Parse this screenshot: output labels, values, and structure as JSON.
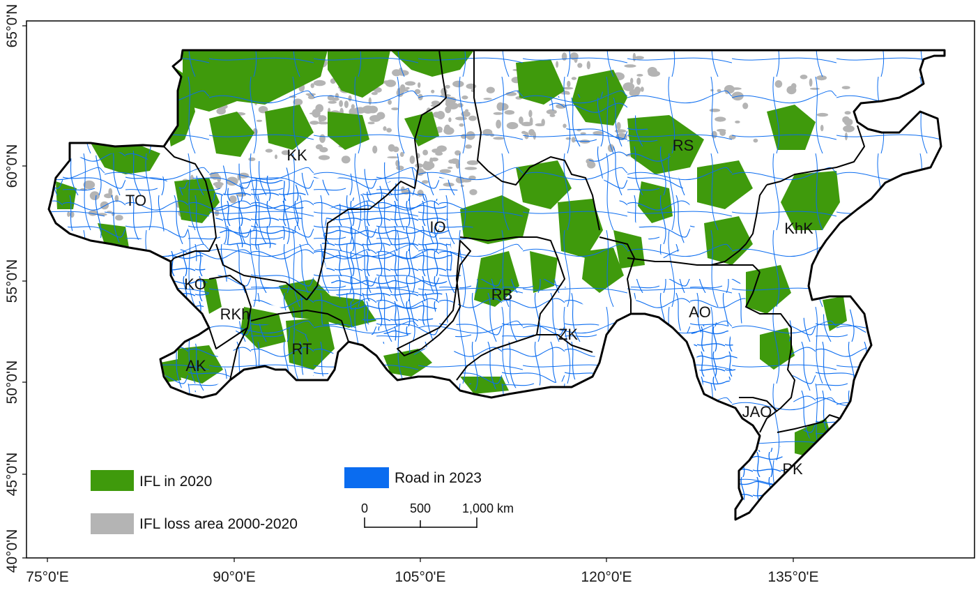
{
  "map": {
    "longitude_labels": [
      "75°0'E",
      "90°0'E",
      "105°0'E",
      "120°0'E",
      "135°0'E"
    ],
    "latitude_labels": [
      "65°0'N",
      "60°0'N",
      "55°0'N",
      "50°0'N",
      "45°0'N",
      "40°0'N"
    ],
    "regions": [
      "KK",
      "RS",
      "TO",
      "IO",
      "KhK",
      "KO",
      "RB",
      "RKh",
      "AO",
      "ZK",
      "RT",
      "AK",
      "JAO",
      "PK"
    ],
    "legend": {
      "ifl_2020": "IFL in 2020",
      "ifl_loss": "IFL loss area 2000-2020",
      "road_2023": "Road in 2023"
    },
    "scale_bar": {
      "labels": [
        "0",
        "500",
        "1,000 km"
      ]
    },
    "colors": {
      "ifl": "#3f9a0c",
      "ifl_loss": "#b4b4b4",
      "road": "#0a6cf0",
      "boundary": "#000000"
    }
  }
}
